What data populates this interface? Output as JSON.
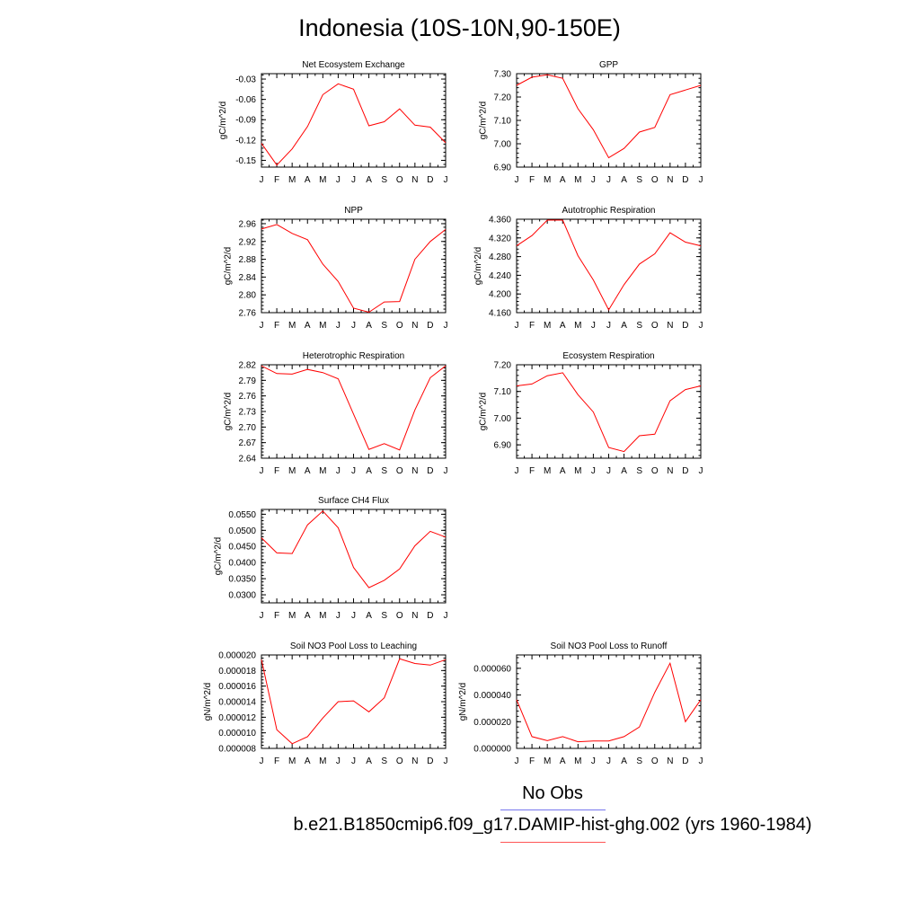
{
  "title": "Indonesia (10S-10N,90-150E)",
  "month_ticks": [
    "J",
    "F",
    "M",
    "A",
    "M",
    "J",
    "J",
    "A",
    "S",
    "O",
    "N",
    "D",
    "J"
  ],
  "legend": {
    "obs_label": "No Obs",
    "obs_color": "#7777ee",
    "case_label": "b.e21.B1850cmip6.f09_g17.DAMIP-hist-ghg.002 (yrs 1960-1984)",
    "case_color": "#ff5555"
  },
  "chart_data": [
    {
      "type": "line",
      "title": "Net Ecosystem Exchange",
      "ylabel": "gC/m^2/d",
      "ylim": [
        -0.16,
        -0.022
      ],
      "yticks": [
        "-0.03",
        "-0.06",
        "-0.09",
        "-0.12",
        "-0.15"
      ],
      "ytick_values": [
        -0.03,
        -0.06,
        -0.09,
        -0.12,
        -0.15
      ],
      "series": [
        {
          "values": [
            -0.125,
            -0.157,
            -0.133,
            -0.1,
            -0.053,
            -0.037,
            -0.045,
            -0.099,
            -0.093,
            -0.074,
            -0.098,
            -0.101,
            -0.124
          ],
          "color": "#ff0000"
        }
      ]
    },
    {
      "type": "line",
      "title": "GPP",
      "ylabel": "gC/m^2/d",
      "ylim": [
        6.9,
        7.3
      ],
      "yticks": [
        "7.30",
        "7.20",
        "7.10",
        "7.00",
        "6.90"
      ],
      "ytick_values": [
        7.3,
        7.2,
        7.1,
        7.0,
        6.9
      ],
      "series": [
        {
          "values": [
            7.25,
            7.285,
            7.295,
            7.28,
            7.15,
            7.06,
            6.94,
            6.98,
            7.05,
            7.07,
            7.21,
            7.23,
            7.25
          ],
          "color": "#ff0000"
        }
      ]
    },
    {
      "type": "line",
      "title": "NPP",
      "ylabel": "gC/m^2/d",
      "ylim": [
        2.76,
        2.97
      ],
      "yticks": [
        "2.96",
        "2.92",
        "2.88",
        "2.84",
        "2.80",
        "2.76"
      ],
      "ytick_values": [
        2.96,
        2.92,
        2.88,
        2.84,
        2.8,
        2.76
      ],
      "series": [
        {
          "values": [
            2.948,
            2.958,
            2.938,
            2.924,
            2.869,
            2.83,
            2.77,
            2.761,
            2.784,
            2.785,
            2.88,
            2.92,
            2.947
          ],
          "color": "#ff0000"
        }
      ]
    },
    {
      "type": "line",
      "title": "Autotrophic Respiration",
      "ylabel": "gC/m^2/d",
      "ylim": [
        4.16,
        4.36
      ],
      "yticks": [
        "4.360",
        "4.320",
        "4.280",
        "4.240",
        "4.200",
        "4.160"
      ],
      "ytick_values": [
        4.36,
        4.32,
        4.28,
        4.24,
        4.2,
        4.16
      ],
      "series": [
        {
          "values": [
            4.303,
            4.325,
            4.358,
            4.358,
            4.282,
            4.23,
            4.166,
            4.22,
            4.264,
            4.286,
            4.331,
            4.311,
            4.303
          ],
          "color": "#ff0000"
        }
      ]
    },
    {
      "type": "line",
      "title": "Heterotrophic Respiration",
      "ylabel": "gC/m^2/d",
      "ylim": [
        2.64,
        2.82
      ],
      "yticks": [
        "2.82",
        "2.79",
        "2.76",
        "2.73",
        "2.70",
        "2.67",
        "2.64"
      ],
      "ytick_values": [
        2.82,
        2.79,
        2.76,
        2.73,
        2.7,
        2.67,
        2.64
      ],
      "series": [
        {
          "values": [
            2.818,
            2.803,
            2.802,
            2.811,
            2.805,
            2.793,
            2.725,
            2.657,
            2.668,
            2.656,
            2.733,
            2.795,
            2.818
          ],
          "color": "#ff0000"
        }
      ]
    },
    {
      "type": "line",
      "title": "Ecosystem Respiration",
      "ylabel": "gC/m^2/d",
      "ylim": [
        6.85,
        7.2
      ],
      "yticks": [
        "7.20",
        "7.10",
        "7.00",
        "6.90"
      ],
      "ytick_values": [
        7.2,
        7.1,
        7.0,
        6.9
      ],
      "series": [
        {
          "values": [
            7.121,
            7.128,
            7.159,
            7.17,
            7.088,
            7.023,
            6.89,
            6.875,
            6.934,
            6.94,
            7.065,
            7.107,
            7.121
          ],
          "color": "#ff0000"
        }
      ]
    },
    {
      "type": "line",
      "title": "Surface CH4 Flux",
      "ylabel": "gC/m^2/d",
      "ylim": [
        0.0275,
        0.0565
      ],
      "yticks": [
        "0.0550",
        "0.0500",
        "0.0450",
        "0.0400",
        "0.0350",
        "0.0300"
      ],
      "ytick_values": [
        0.055,
        0.05,
        0.045,
        0.04,
        0.035,
        0.03
      ],
      "series": [
        {
          "values": [
            0.0477,
            0.043,
            0.0428,
            0.0517,
            0.056,
            0.0508,
            0.0385,
            0.0322,
            0.0345,
            0.038,
            0.0452,
            0.0497,
            0.0479
          ],
          "color": "#ff0000"
        }
      ]
    },
    {
      "type": "line",
      "title": "Soil NO3 Pool Loss to Leaching",
      "ylabel": "gN/m^2/d",
      "ylim": [
        8e-06,
        2e-05
      ],
      "yticks": [
        "0.000020",
        "0.000018",
        "0.000016",
        "0.000014",
        "0.000012",
        "0.000010",
        "0.000008"
      ],
      "ytick_values": [
        2e-05,
        1.8e-05,
        1.6e-05,
        1.4e-05,
        1.2e-05,
        1e-05,
        8e-06
      ],
      "series": [
        {
          "values": [
            1.94e-05,
            1.04e-05,
            8.6e-06,
            9.5e-06,
            1.19e-05,
            1.4e-05,
            1.41e-05,
            1.27e-05,
            1.45e-05,
            1.95e-05,
            1.89e-05,
            1.87e-05,
            1.94e-05
          ],
          "color": "#ff0000"
        }
      ]
    },
    {
      "type": "line",
      "title": "Soil NO3 Pool Loss to Runoff",
      "ylabel": "gN/m^2/d",
      "ylim": [
        0.0,
        7e-05
      ],
      "yticks": [
        "0.000060",
        "0.000040",
        "0.000020",
        "0.000000"
      ],
      "ytick_values": [
        6e-05,
        4e-05,
        2e-05,
        0.0
      ],
      "series": [
        {
          "values": [
            3.65e-05,
            8.8e-06,
            5.8e-06,
            8.8e-06,
            5e-06,
            5.5e-06,
            5.6e-06,
            8.8e-06,
            1.6e-05,
            4.2e-05,
            6.38e-05,
            2e-05,
            3.65e-05
          ],
          "color": "#ff0000"
        }
      ]
    }
  ]
}
